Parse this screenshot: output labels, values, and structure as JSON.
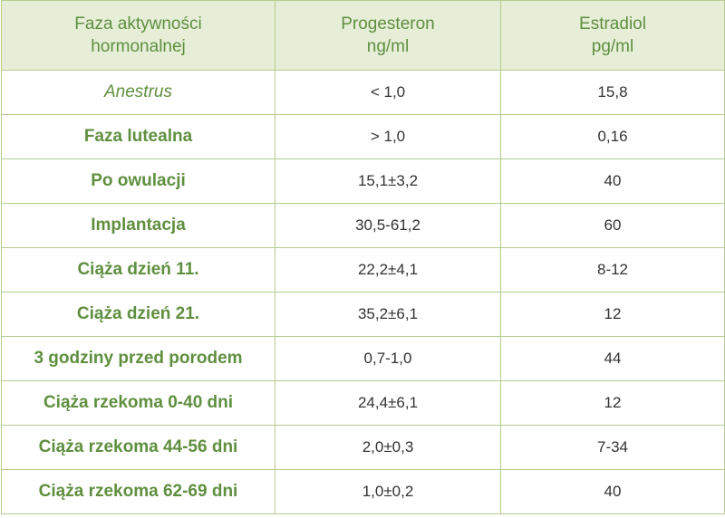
{
  "table": {
    "header": [
      [
        "Faza aktywności",
        "hormonalnej"
      ],
      [
        "Progesteron",
        "ng/ml"
      ],
      [
        "Estradiol",
        "pg/ml"
      ]
    ],
    "rows": [
      [
        "Anestrus",
        "< 1,0",
        "15,8"
      ],
      [
        "Faza lutealna",
        "> 1,0",
        "0,16"
      ],
      [
        "Po owulacji",
        "15,1±3,2",
        "40"
      ],
      [
        "Implantacja",
        "30,5-61,2",
        "60"
      ],
      [
        "Ciąża dzień 11.",
        "22,2±4,1",
        "8-12"
      ],
      [
        "Ciąża dzień 21.",
        "35,2±6,1",
        "12"
      ],
      [
        "3 godziny przed porodem",
        "0,7-1,0",
        "44"
      ],
      [
        "Ciąża rzekoma 0-40 dni",
        "24,4±6,1",
        "12"
      ],
      [
        "Ciąża rzekoma 44-56 dni",
        "2,0±0,3",
        "7-34"
      ],
      [
        "Ciąża rzekoma 62-69 dni",
        "1,0±0,2",
        "40"
      ]
    ]
  }
}
